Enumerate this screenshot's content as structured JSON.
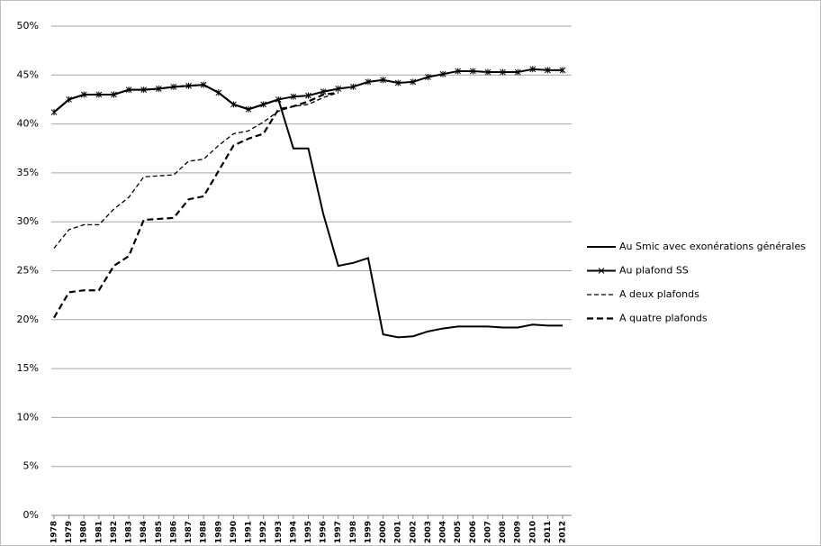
{
  "chart_data": {
    "type": "line",
    "categories": [
      "1978",
      "1979",
      "1980",
      "1981",
      "1982",
      "1983",
      "1984",
      "1985",
      "1986",
      "1987",
      "1988",
      "1989",
      "1990",
      "1991",
      "1992",
      "1993",
      "1994",
      "1995",
      "1996",
      "1997",
      "1998",
      "1999",
      "2000",
      "2001",
      "2002",
      "2003",
      "2004",
      "2005",
      "2006",
      "2007",
      "2008",
      "2009",
      "2010",
      "2011",
      "2012"
    ],
    "series": [
      {
        "name": "Au Smic avec exonérations générales",
        "color": "#000000",
        "style": "solid",
        "marker": "none",
        "values": [
          41.2,
          42.5,
          43,
          43,
          43,
          43.5,
          43.5,
          43.6,
          43.8,
          43.9,
          44,
          43.2,
          42,
          41.5,
          42,
          42.5,
          37.5,
          37.5,
          30.8,
          25.5,
          25.8,
          26.3,
          18.5,
          18.2,
          18.3,
          18.8,
          19.1,
          19.3,
          19.3,
          19.3,
          19.2,
          19.2,
          19.5,
          19.4,
          19.4
        ]
      },
      {
        "name": "Au plafond SS",
        "color": "#000000",
        "style": "solid",
        "marker": "star",
        "values": [
          41.2,
          42.5,
          43,
          43,
          43,
          43.5,
          43.5,
          43.6,
          43.8,
          43.9,
          44,
          43.2,
          42,
          41.5,
          42,
          42.5,
          42.8,
          42.9,
          43.3,
          43.6,
          43.8,
          44.3,
          44.5,
          44.2,
          44.3,
          44.8,
          45.1,
          45.4,
          45.4,
          45.3,
          45.3,
          45.3,
          45.6,
          45.5,
          45.5
        ]
      },
      {
        "name": "A deux plafonds",
        "color": "#000000",
        "style": "dashed",
        "marker": "none",
        "values": [
          27.3,
          29.2,
          29.7,
          29.7,
          31.3,
          32.5,
          34.6,
          34.7,
          34.8,
          36.2,
          36.4,
          37.8,
          39,
          39.3,
          40.2,
          41.3,
          41.8,
          42,
          42.7,
          43.2,
          null,
          null,
          null,
          null,
          null,
          null,
          null,
          null,
          null,
          null,
          null,
          null,
          null,
          null,
          null
        ]
      },
      {
        "name": "A quatre plafonds",
        "color": "#000000",
        "style": "thick-dashed",
        "marker": "none",
        "values": [
          20.2,
          22.8,
          23,
          23,
          25.5,
          26.5,
          30.2,
          30.3,
          30.4,
          32.3,
          32.6,
          35.2,
          37.8,
          38.5,
          39,
          41.5,
          41.8,
          42.3,
          43,
          43.2,
          null,
          null,
          null,
          null,
          null,
          null,
          null,
          null,
          null,
          null,
          null,
          null,
          null,
          null,
          null
        ]
      }
    ],
    "ylim": [
      0,
      50
    ],
    "yticks": [
      {
        "value": 0,
        "label": "0%"
      },
      {
        "value": 5,
        "label": "5%"
      },
      {
        "value": 10,
        "label": "10%"
      },
      {
        "value": 15,
        "label": "15%"
      },
      {
        "value": 20,
        "label": "20%"
      },
      {
        "value": 25,
        "label": "25%"
      },
      {
        "value": 30,
        "label": "30%"
      },
      {
        "value": 35,
        "label": "35%"
      },
      {
        "value": 40,
        "label": "40%"
      },
      {
        "value": 45,
        "label": "45%"
      },
      {
        "value": 50,
        "label": "50%"
      }
    ],
    "grid": true,
    "legend": "right"
  }
}
